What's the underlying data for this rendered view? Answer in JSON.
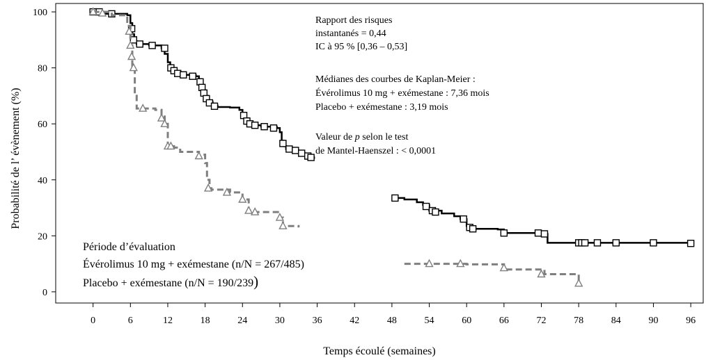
{
  "chart_data": {
    "type": "line",
    "title": "",
    "xlabel": "Temps écoulé (semaines)",
    "ylabel": "Probabilité de l’ évènement (%)",
    "xlim": [
      -6,
      98
    ],
    "ylim": [
      -4,
      103
    ],
    "xticks": [
      0,
      6,
      12,
      18,
      24,
      30,
      36,
      42,
      48,
      54,
      60,
      66,
      72,
      78,
      84,
      90,
      96
    ],
    "yticks": [
      0,
      20,
      40,
      60,
      80,
      100
    ],
    "grid": false,
    "legend": "bottom-left",
    "series": [
      {
        "name": "Évérolimus 10 mg + exémestane (n/N = 267/485)",
        "color": "#000000",
        "style": "solid",
        "marker": "square",
        "steps": [
          [
            0,
            100
          ],
          [
            2,
            99.3
          ],
          [
            5.5,
            98.8
          ],
          [
            6,
            96
          ],
          [
            6.3,
            92
          ],
          [
            6.6,
            89.5
          ],
          [
            7,
            88.5
          ],
          [
            9,
            88
          ],
          [
            11,
            87
          ],
          [
            11.5,
            85
          ],
          [
            12,
            82
          ],
          [
            12.4,
            80
          ],
          [
            12.8,
            79
          ],
          [
            13.4,
            78
          ],
          [
            14,
            77.5
          ],
          [
            16.5,
            77
          ],
          [
            17,
            76
          ],
          [
            17.3,
            74
          ],
          [
            17.6,
            72
          ],
          [
            18,
            70
          ],
          [
            18.5,
            68
          ],
          [
            19.2,
            66.5
          ],
          [
            20,
            66
          ],
          [
            22,
            65.8
          ],
          [
            23.5,
            65
          ],
          [
            24,
            63.5
          ],
          [
            24.5,
            62
          ],
          [
            25,
            60.5
          ],
          [
            25.5,
            59.5
          ],
          [
            27,
            59
          ],
          [
            29.5,
            58.5
          ],
          [
            30,
            57
          ],
          [
            30.3,
            54
          ],
          [
            30.6,
            52
          ],
          [
            31,
            51
          ],
          [
            32,
            50.5
          ],
          [
            33,
            49.5
          ],
          [
            34,
            49
          ],
          [
            35,
            48
          ],
          [
            35.5,
            47.5
          ],
          null,
          [
            48,
            33.5
          ],
          [
            50,
            33
          ],
          [
            52,
            32
          ],
          [
            53,
            31
          ],
          [
            54,
            29
          ],
          [
            56,
            28
          ],
          [
            58,
            27
          ],
          [
            59,
            26
          ],
          [
            60,
            23.5
          ],
          [
            61,
            22.5
          ],
          [
            65,
            22.3
          ],
          [
            66,
            21
          ],
          [
            72,
            20.7
          ],
          [
            73,
            17.5
          ],
          [
            96,
            17.3
          ]
        ],
        "censor_points": [
          [
            0,
            100
          ],
          [
            1,
            100
          ],
          [
            3,
            99.3
          ],
          [
            6.2,
            94
          ],
          [
            6.5,
            90
          ],
          [
            7.5,
            88.5
          ],
          [
            9.5,
            88
          ],
          [
            11.5,
            87
          ],
          [
            12.5,
            80
          ],
          [
            13,
            79
          ],
          [
            13.6,
            78
          ],
          [
            14.5,
            77.5
          ],
          [
            16,
            77
          ],
          [
            17.2,
            75
          ],
          [
            17.5,
            73
          ],
          [
            17.8,
            71
          ],
          [
            18.2,
            69
          ],
          [
            18.7,
            67.5
          ],
          [
            19.5,
            66.3
          ],
          [
            24.2,
            63
          ],
          [
            24.7,
            61
          ],
          [
            25.2,
            60
          ],
          [
            26,
            59.5
          ],
          [
            27.5,
            59
          ],
          [
            29,
            58.5
          ],
          [
            30.5,
            53
          ],
          [
            31.5,
            51
          ],
          [
            32.5,
            50.5
          ],
          [
            33.5,
            49.5
          ],
          [
            34.5,
            48.5
          ],
          [
            35,
            48
          ],
          [
            48.5,
            33.5
          ],
          [
            53.5,
            30.5
          ],
          [
            54.5,
            29
          ],
          [
            55,
            28.5
          ],
          [
            59.5,
            26
          ],
          [
            60.5,
            23
          ],
          [
            61,
            22.5
          ],
          [
            66,
            21
          ],
          [
            71.5,
            21
          ],
          [
            72.5,
            20.7
          ],
          [
            78,
            17.5
          ],
          [
            78.5,
            17.5
          ],
          [
            79,
            17.5
          ],
          [
            81,
            17.5
          ],
          [
            84,
            17.5
          ],
          [
            90,
            17.5
          ],
          [
            96,
            17.3
          ]
        ]
      },
      {
        "name": "Placebo + exémestane (n/N = 190/239)",
        "color": "#7f7f7f",
        "style": "dashed",
        "marker": "triangle",
        "steps": [
          [
            0,
            100
          ],
          [
            3,
            98.8
          ],
          [
            5.5,
            95
          ],
          [
            6,
            88
          ],
          [
            6.3,
            80
          ],
          [
            6.7,
            70
          ],
          [
            7,
            65.5
          ],
          [
            10,
            65
          ],
          [
            11,
            63
          ],
          [
            11.5,
            60
          ],
          [
            12,
            52
          ],
          [
            13,
            51.5
          ],
          [
            14,
            50
          ],
          [
            17,
            49
          ],
          [
            18,
            46
          ],
          [
            18.3,
            40
          ],
          [
            18.7,
            37
          ],
          [
            19,
            36.5
          ],
          [
            22,
            35.5
          ],
          [
            24,
            33
          ],
          [
            25,
            29
          ],
          [
            26,
            28.5
          ],
          [
            29,
            28.5
          ],
          [
            30,
            26.5
          ],
          [
            30.5,
            23.5
          ],
          [
            33,
            23
          ],
          null,
          [
            50,
            10
          ],
          [
            60,
            9.8
          ],
          [
            66,
            8
          ],
          [
            72,
            8
          ],
          [
            72.5,
            6.3
          ],
          [
            78,
            3
          ]
        ],
        "censor_points": [
          [
            0,
            100
          ],
          [
            1.5,
            99.5
          ],
          [
            5.8,
            93
          ],
          [
            6,
            88
          ],
          [
            6.2,
            84
          ],
          [
            6.5,
            80
          ],
          [
            8,
            65.5
          ],
          [
            11,
            62
          ],
          [
            11.5,
            60
          ],
          [
            12,
            52
          ],
          [
            12.5,
            52
          ],
          [
            17,
            48.5
          ],
          [
            18.5,
            37
          ],
          [
            21.5,
            35.5
          ],
          [
            24,
            33
          ],
          [
            25,
            29
          ],
          [
            26,
            28.5
          ],
          [
            30,
            26.5
          ],
          [
            30.5,
            23.5
          ],
          [
            54,
            10
          ],
          [
            59,
            10
          ],
          [
            66,
            8.5
          ],
          [
            72,
            6.3
          ],
          [
            78,
            3
          ]
        ]
      }
    ],
    "annotations": {
      "hazard_ratio": [
        "Rapport des risques",
        "instantanés = 0,44",
        "IC à 95 % [0,36 – 0,53]"
      ],
      "medians": [
        "Médianes des courbes de Kaplan-Meier :",
        "Évérolimus 10 mg + exémestane : 7,36 mois",
        "Placebo + exémestane : 3,19 mois"
      ],
      "pvalue_prefix": "Valeur de ",
      "pvalue_italic": "p",
      "pvalue_suffix": " selon le test",
      "pvalue_line2": "de Mantel-Haenszel : < 0,0001"
    },
    "legend_block": {
      "title": "Période d’évaluation",
      "entry1": "Évérolimus 10 mg + exémestane (n/N = 267/485)",
      "entry2": "Placebo + exémestane (n/N = 190/239",
      "entry2_paren": ")"
    }
  }
}
